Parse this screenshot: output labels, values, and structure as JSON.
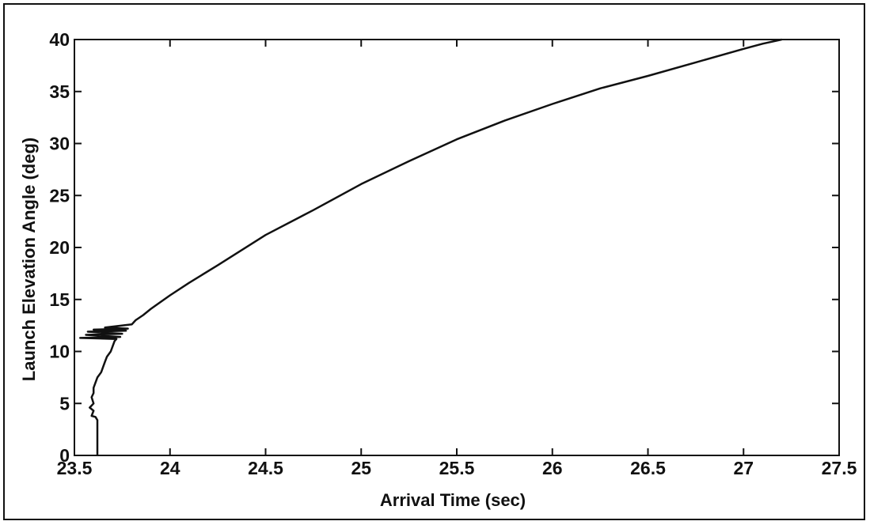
{
  "chart_data": {
    "type": "line",
    "title": "",
    "xlabel": "Arrival Time (sec)",
    "ylabel": "Launch Elevation Angle (deg)",
    "xlim": [
      23.5,
      27.5
    ],
    "ylim": [
      0,
      40
    ],
    "xticks": [
      23.5,
      24,
      24.5,
      25,
      25.5,
      26,
      26.5,
      27,
      27.5
    ],
    "yticks": [
      0,
      5,
      10,
      15,
      20,
      25,
      30,
      35,
      40
    ],
    "xtick_labels": [
      "23.5",
      "24",
      "24.5",
      "25",
      "25.5",
      "26",
      "26.5",
      "27",
      "27.5"
    ],
    "ytick_labels": [
      "0",
      "5",
      "10",
      "15",
      "20",
      "25",
      "30",
      "35",
      "40"
    ],
    "grid": false,
    "legend": "none",
    "line_color": "#111111",
    "series": [
      {
        "x": [
          23.62,
          23.62,
          23.61,
          23.59,
          23.6,
          23.58,
          23.6,
          23.59,
          23.6,
          23.6,
          23.61,
          23.62,
          23.64,
          23.65,
          23.66,
          23.67,
          23.69,
          23.7,
          23.71,
          23.72,
          23.53,
          23.74,
          23.56,
          23.75,
          23.57,
          23.77,
          23.6,
          23.78,
          23.66,
          23.8,
          23.82,
          23.86,
          23.9,
          24.0,
          24.1,
          24.25,
          24.5,
          24.75,
          25.0,
          25.25,
          25.5,
          25.75,
          26.0,
          26.25,
          26.5,
          26.75,
          27.0,
          27.1,
          27.2
        ],
        "y": [
          0.0,
          3.4,
          3.7,
          3.8,
          4.3,
          4.6,
          5.0,
          5.6,
          6.0,
          6.5,
          7.0,
          7.5,
          8.0,
          8.5,
          9.0,
          9.5,
          10.0,
          10.5,
          11.0,
          11.2,
          11.3,
          11.4,
          11.6,
          11.7,
          11.9,
          12.0,
          12.1,
          12.2,
          12.3,
          12.6,
          13.0,
          13.5,
          14.1,
          15.4,
          16.6,
          18.3,
          21.2,
          23.6,
          26.1,
          28.3,
          30.4,
          32.2,
          33.8,
          35.3,
          36.5,
          37.8,
          39.1,
          39.6,
          40.0
        ]
      }
    ]
  }
}
